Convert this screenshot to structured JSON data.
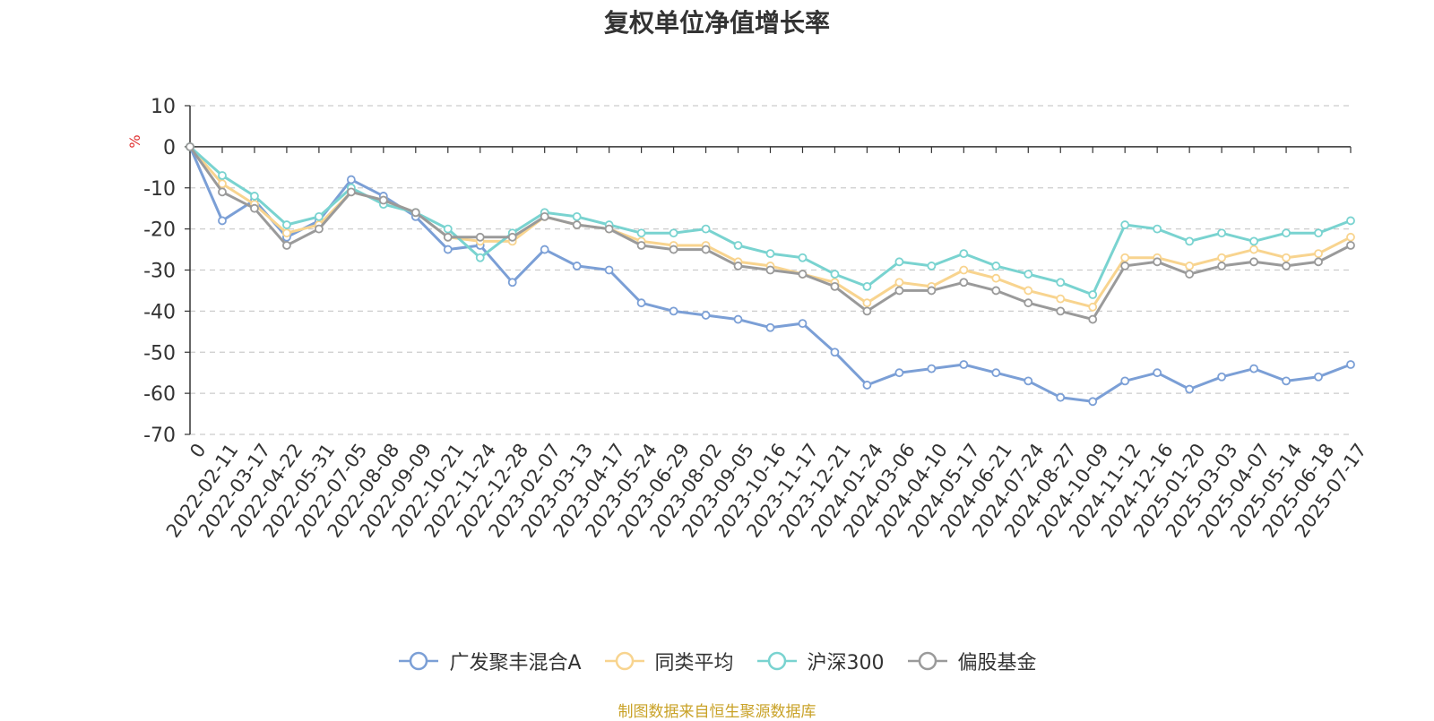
{
  "chart_data": {
    "type": "line",
    "title": "复权单位净值增长率",
    "ylabel": "%",
    "ylim": [
      -70,
      10
    ],
    "yticks": [
      10,
      0,
      -10,
      -20,
      -30,
      -40,
      -50,
      -60,
      -70
    ],
    "grid": true,
    "legend_position": "bottom",
    "x": [
      "0",
      "2022-02-11",
      "2022-03-17",
      "2022-04-22",
      "2022-05-31",
      "2022-07-05",
      "2022-08-08",
      "2022-09-09",
      "2022-10-21",
      "2022-11-24",
      "2022-12-28",
      "2023-02-07",
      "2023-03-13",
      "2023-04-17",
      "2023-05-24",
      "2023-06-29",
      "2023-08-02",
      "2023-09-05",
      "2023-10-16",
      "2023-11-17",
      "2023-12-21",
      "2024-01-24",
      "2024-03-06",
      "2024-04-10",
      "2024-05-17",
      "2024-06-21",
      "2024-07-24",
      "2024-08-27",
      "2024-10-09",
      "2024-11-12",
      "2024-12-16",
      "2025-01-20",
      "2025-03-03",
      "2025-04-07",
      "2025-05-14",
      "2025-06-18",
      "2025-07-17"
    ],
    "series": [
      {
        "name": "广发聚丰混合A",
        "color": "#7b9fd6",
        "values": [
          0,
          -18,
          -13,
          -22,
          -18,
          -8,
          -12,
          -17,
          -25,
          -24,
          -33,
          -25,
          -29,
          -30,
          -38,
          -40,
          -41,
          -42,
          -44,
          -43,
          -50,
          -58,
          -55,
          -54,
          -53,
          -55,
          -57,
          -61,
          -62,
          -57,
          -55,
          -59,
          -56,
          -54,
          -57,
          -56,
          -53
        ]
      },
      {
        "name": "同类平均",
        "color": "#f8d48f",
        "values": [
          0,
          -9,
          -14,
          -21,
          -19,
          -11,
          -13,
          -16,
          -22,
          -23,
          -23,
          -17,
          -19,
          -20,
          -23,
          -24,
          -24,
          -28,
          -29,
          -31,
          -33,
          -38,
          -33,
          -34,
          -30,
          -32,
          -35,
          -37,
          -39,
          -27,
          -27,
          -29,
          -27,
          -25,
          -27,
          -26,
          -22
        ]
      },
      {
        "name": "沪深300",
        "color": "#79d3d0",
        "values": [
          0,
          -7,
          -12,
          -19,
          -17,
          -10,
          -14,
          -16,
          -20,
          -27,
          -21,
          -16,
          -17,
          -19,
          -21,
          -21,
          -20,
          -24,
          -26,
          -27,
          -31,
          -34,
          -28,
          -29,
          -26,
          -29,
          -31,
          -33,
          -36,
          -19,
          -20,
          -23,
          -21,
          -23,
          -21,
          -21,
          -18
        ]
      },
      {
        "name": "偏股基金",
        "color": "#9a9a9a",
        "values": [
          0,
          -11,
          -15,
          -24,
          -20,
          -11,
          -13,
          -16,
          -22,
          -22,
          -22,
          -17,
          -19,
          -20,
          -24,
          -25,
          -25,
          -29,
          -30,
          -31,
          -34,
          -40,
          -35,
          -35,
          -33,
          -35,
          -38,
          -40,
          -42,
          -29,
          -28,
          -31,
          -29,
          -28,
          -29,
          -28,
          -24
        ]
      }
    ]
  },
  "source_note": "制图数据来自恒生聚源数据库"
}
